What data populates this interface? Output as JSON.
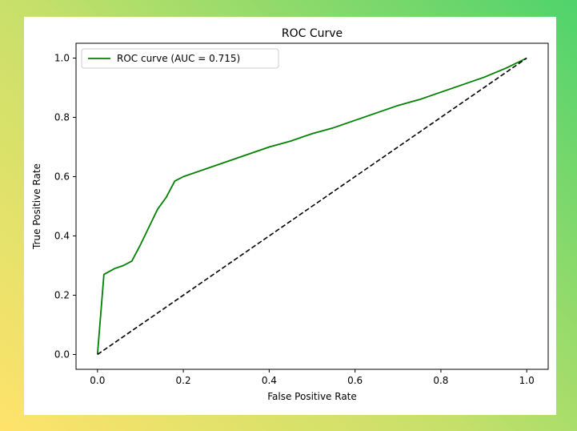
{
  "chart_data": {
    "type": "line",
    "title": "ROC Curve",
    "xlabel": "False Positive Rate",
    "ylabel": "True Positive Rate",
    "xlim": [
      -0.05,
      1.05
    ],
    "ylim": [
      -0.05,
      1.05
    ],
    "xticks": [
      0.0,
      0.2,
      0.4,
      0.6,
      0.8,
      1.0
    ],
    "xtick_labels": [
      "0.0",
      "0.2",
      "0.4",
      "0.6",
      "0.8",
      "1.0"
    ],
    "yticks": [
      0.0,
      0.2,
      0.4,
      0.6,
      0.8,
      1.0
    ],
    "ytick_labels": [
      "0.0",
      "0.2",
      "0.4",
      "0.6",
      "0.8",
      "1.0"
    ],
    "grid": false,
    "legend_position": "upper-left",
    "series": [
      {
        "name": "ROC curve (AUC = 0.715)",
        "color": "#008000",
        "style": "solid",
        "x": [
          0.0,
          0.015,
          0.04,
          0.06,
          0.08,
          0.1,
          0.12,
          0.14,
          0.16,
          0.18,
          0.2,
          0.25,
          0.3,
          0.35,
          0.4,
          0.45,
          0.5,
          0.55,
          0.6,
          0.65,
          0.7,
          0.75,
          0.8,
          0.85,
          0.9,
          0.95,
          1.0
        ],
        "y": [
          0.0,
          0.27,
          0.29,
          0.3,
          0.315,
          0.37,
          0.43,
          0.49,
          0.53,
          0.585,
          0.6,
          0.625,
          0.65,
          0.675,
          0.7,
          0.72,
          0.745,
          0.765,
          0.79,
          0.815,
          0.84,
          0.86,
          0.885,
          0.91,
          0.935,
          0.965,
          1.0
        ]
      },
      {
        "name": "",
        "color": "#000000",
        "style": "dashed",
        "x": [
          0.0,
          1.0
        ],
        "y": [
          0.0,
          1.0
        ]
      }
    ]
  }
}
